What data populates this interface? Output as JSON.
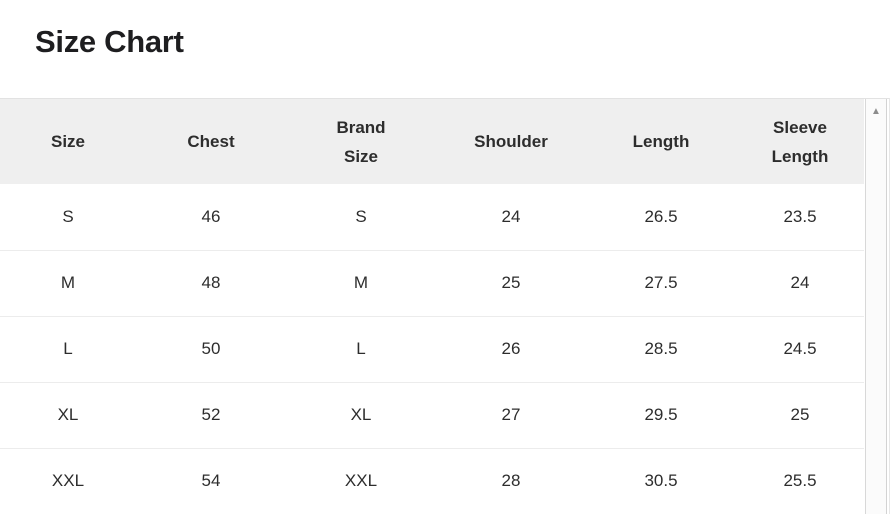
{
  "title": "Size Chart",
  "table": {
    "headers": [
      "Size",
      "Chest",
      "Brand\nSize",
      "Shoulder",
      "Length",
      "Sleeve\nLength"
    ],
    "rows": [
      [
        "S",
        "46",
        "S",
        "24",
        "26.5",
        "23.5"
      ],
      [
        "M",
        "48",
        "M",
        "25",
        "27.5",
        "24"
      ],
      [
        "L",
        "50",
        "L",
        "26",
        "28.5",
        "24.5"
      ],
      [
        "XL",
        "52",
        "XL",
        "27",
        "29.5",
        "25"
      ],
      [
        "XXL",
        "54",
        "XXL",
        "28",
        "30.5",
        "25.5"
      ]
    ]
  },
  "scrollbar": {
    "up_arrow_glyph": "▲"
  },
  "colors": {
    "header_background": "#efefef",
    "row_divider": "#ececec",
    "panel_border": "#e2e2e2",
    "text": "#2d2d2d",
    "title_text": "#1e1e20",
    "scrollbar_track": "#fbfbfb",
    "scrollbar_border": "#d8d8d8",
    "scrollbar_arrow": "#8c8c8c"
  }
}
